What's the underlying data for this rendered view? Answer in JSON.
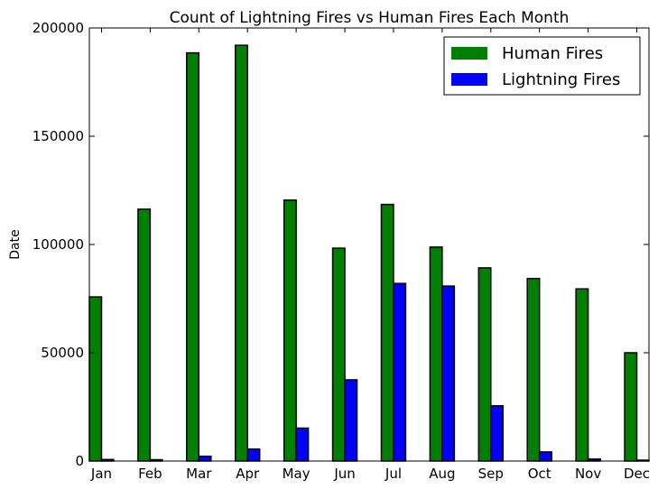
{
  "chart_data": {
    "type": "bar",
    "title": "Count of Lightning Fires vs Human Fires Each Month",
    "xlabel": "",
    "ylabel": "Date",
    "categories": [
      "Jan",
      "Feb",
      "Mar",
      "Apr",
      "May",
      "Jun",
      "Jul",
      "Aug",
      "Sep",
      "Oct",
      "Nov",
      "Dec"
    ],
    "series": [
      {
        "name": "Human Fires",
        "color": "#007f00",
        "values": [
          75800,
          116300,
          188500,
          192000,
          120500,
          98300,
          118500,
          98800,
          89200,
          84300,
          79500,
          50000
        ]
      },
      {
        "name": "Lightning Fires",
        "color": "#0000ff",
        "values": [
          700,
          600,
          2200,
          5500,
          15200,
          37500,
          82000,
          80800,
          25500,
          4200,
          900,
          400
        ]
      }
    ],
    "ylim": [
      0,
      200000
    ],
    "yticks": [
      0,
      50000,
      100000,
      150000,
      200000
    ],
    "grid": false,
    "legend_position": "top-right"
  }
}
